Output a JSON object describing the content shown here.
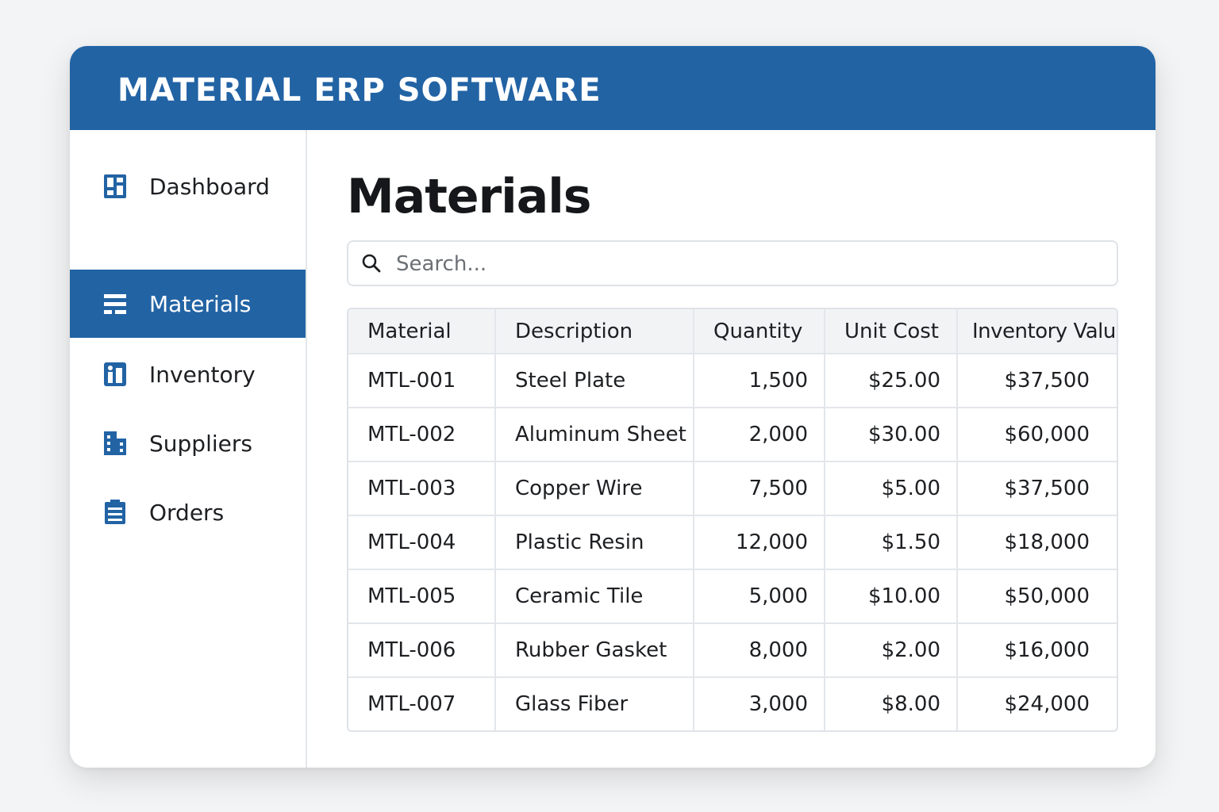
{
  "app": {
    "title": "MATERIAL ERP SOFTWARE"
  },
  "sidebar": {
    "items": [
      {
        "label": "Dashboard",
        "icon": "dashboard-icon",
        "active": false
      },
      {
        "label": "Materials",
        "icon": "list-icon",
        "active": true
      },
      {
        "label": "Inventory",
        "icon": "inventory-icon",
        "active": false
      },
      {
        "label": "Suppliers",
        "icon": "building-icon",
        "active": false
      },
      {
        "label": "Orders",
        "icon": "clipboard-icon",
        "active": false
      }
    ]
  },
  "main": {
    "title": "Materials",
    "search": {
      "placeholder": "Search...",
      "value": ""
    },
    "table": {
      "headers": [
        "Material",
        "Description",
        "Quantity",
        "Unit Cost",
        "Inventory Value"
      ],
      "rows": [
        [
          "MTL-001",
          "Steel Plate",
          "1,500",
          "$25.00",
          "$37,500"
        ],
        [
          "MTL-002",
          "Aluminum Sheet",
          "2,000",
          "$30.00",
          "$60,000"
        ],
        [
          "MTL-003",
          "Copper Wire",
          "7,500",
          "$5.00",
          "$37,500"
        ],
        [
          "MTL-004",
          "Plastic Resin",
          "12,000",
          "$1.50",
          "$18,000"
        ],
        [
          "MTL-005",
          "Ceramic Tile",
          "5,000",
          "$10.00",
          "$50,000"
        ],
        [
          "MTL-006",
          "Rubber Gasket",
          "8,000",
          "$2.00",
          "$16,000"
        ],
        [
          "MTL-007",
          "Glass Fiber",
          "3,000",
          "$8.00",
          "$24,000"
        ]
      ]
    }
  },
  "colors": {
    "brand": "#2263a4",
    "background": "#f3f4f5",
    "header_bg": "#f1f3f5",
    "border": "#e3e6ea"
  }
}
